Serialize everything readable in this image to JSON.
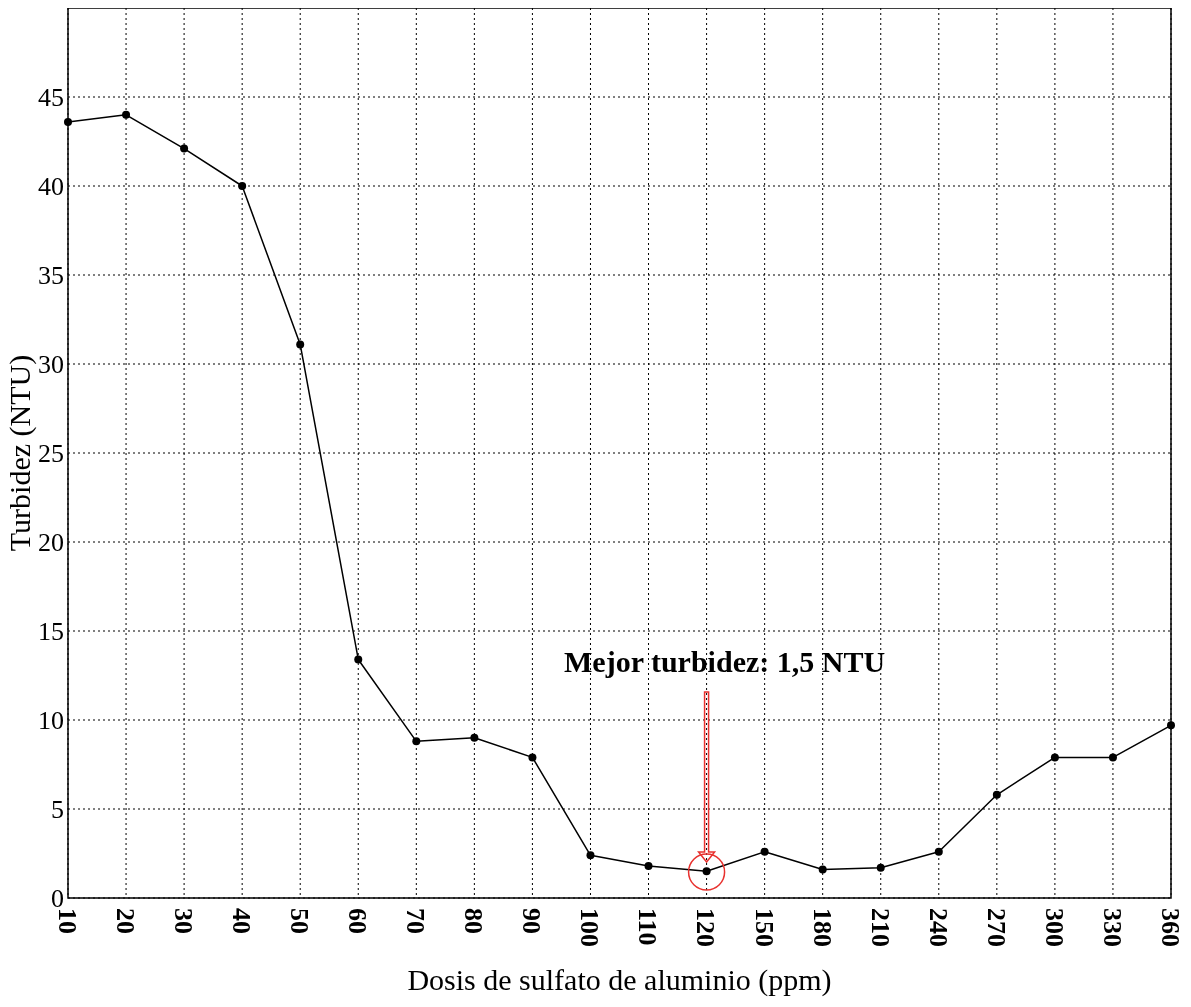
{
  "chart_data": {
    "type": "line",
    "xlabel": "Dosis de sulfato de aluminio (ppm)",
    "ylabel": "Turbidez (NTU)",
    "categories": [
      "10",
      "20",
      "30",
      "40",
      "50",
      "60",
      "70",
      "80",
      "90",
      "100",
      "110",
      "120",
      "150",
      "180",
      "210",
      "240",
      "270",
      "300",
      "330",
      "360"
    ],
    "series": [
      {
        "color": "#000000",
        "values": [
          43.6,
          44.0,
          42.1,
          40.0,
          31.1,
          13.4,
          8.8,
          9.0,
          7.9,
          2.4,
          1.8,
          1.5,
          2.6,
          1.6,
          1.7,
          2.6,
          5.8,
          7.9,
          7.9,
          9.7
        ]
      }
    ],
    "ylim": [
      0,
      50
    ],
    "yticks": [
      0,
      5,
      10,
      15,
      20,
      25,
      30,
      35,
      40,
      45
    ],
    "grid": true,
    "marker": "circle",
    "line_style": "solid",
    "annotations": [
      "Mejor turbidez: 1,5 NTU"
    ]
  }
}
